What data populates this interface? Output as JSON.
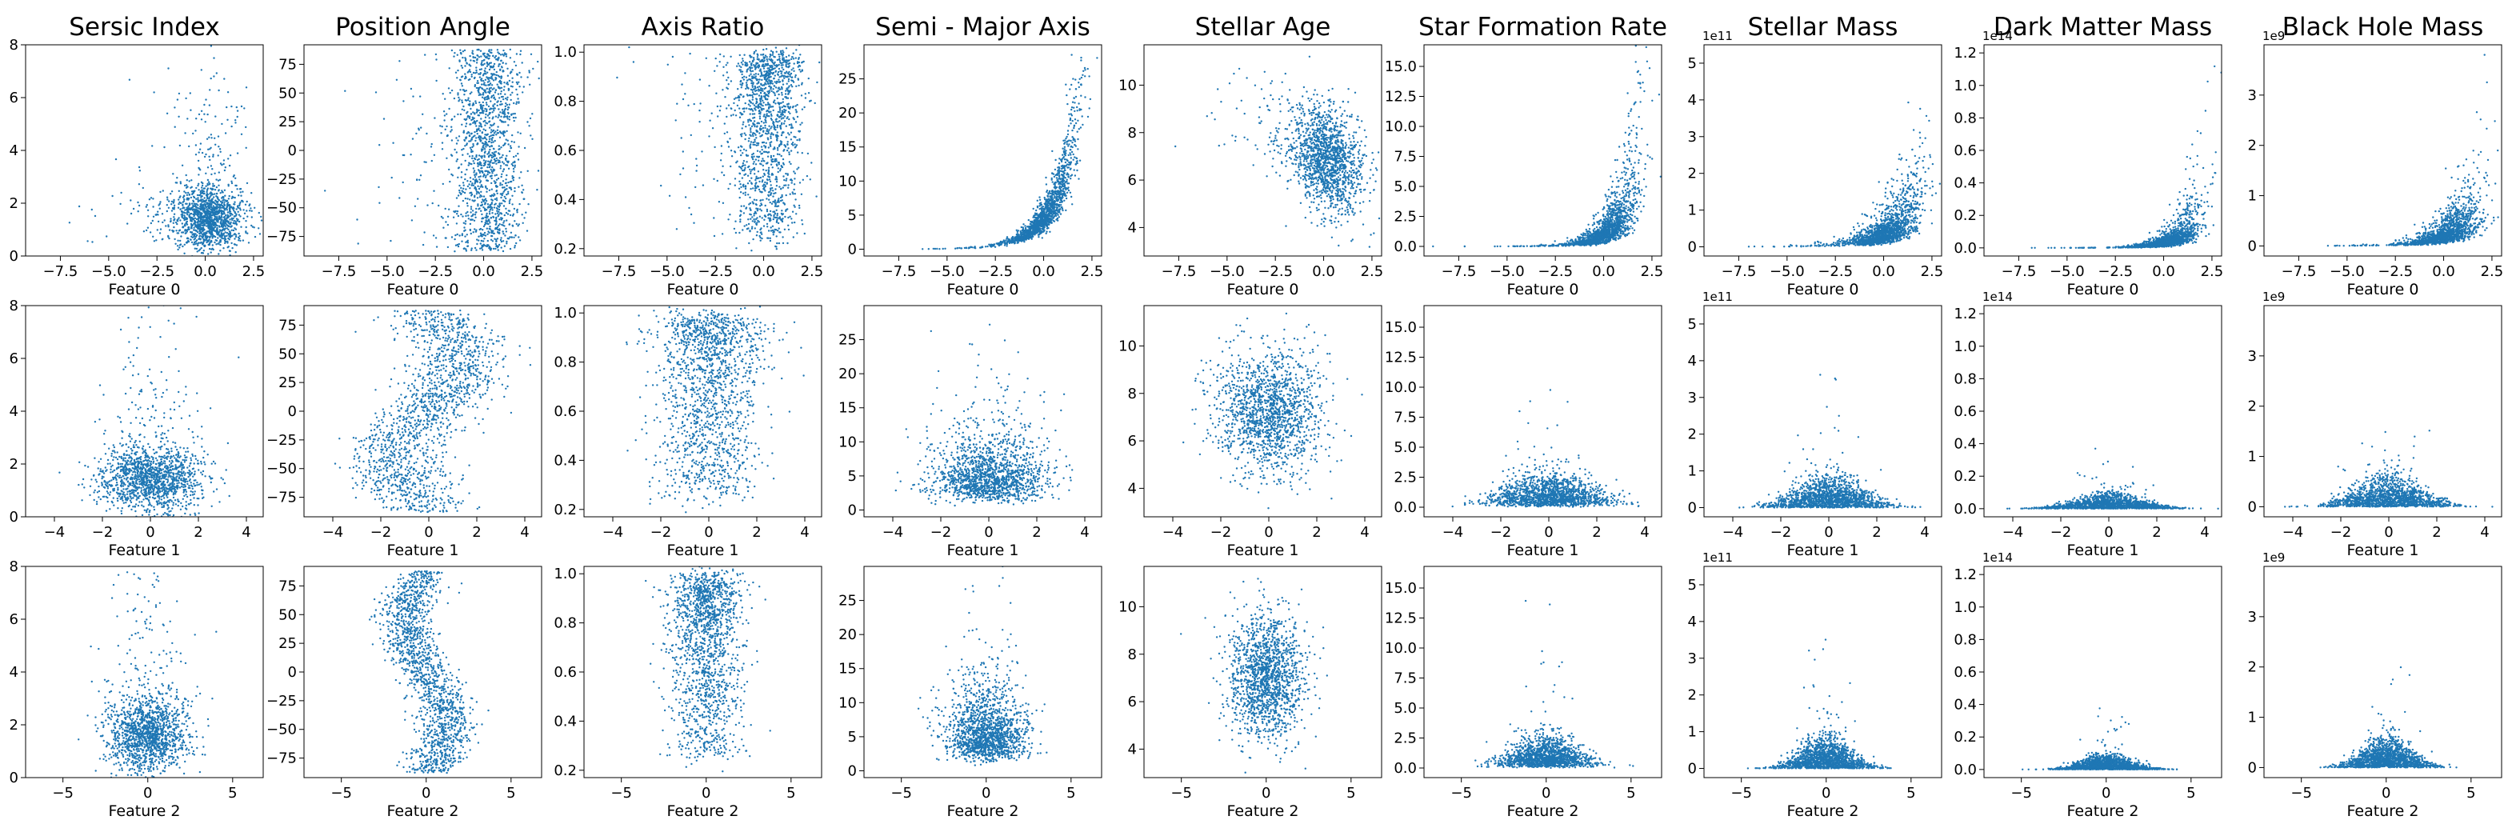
{
  "chart_data": [
    {
      "type": "scatter",
      "row": 0,
      "col": 0,
      "title": "Sersic Index",
      "xlabel": "Feature 0",
      "xlim": [
        -9.3,
        3.0
      ],
      "ylim": [
        0,
        8
      ],
      "xticks": [
        -7.5,
        -5.0,
        -2.5,
        0.0,
        2.5
      ],
      "yticks": [
        0,
        2,
        4,
        6,
        8
      ],
      "offset": "",
      "shape": "cloud",
      "params": {
        "cx": 0.2,
        "sx": 0.9,
        "cy": 1.4,
        "sy": 0.6,
        "tail": "up",
        "tailAmt": 1.6,
        "xsk": -2.4,
        "n": 1500
      },
      "color": "#1f77b4"
    },
    {
      "type": "scatter",
      "row": 0,
      "col": 1,
      "title": "Position Angle",
      "xlabel": "Feature 0",
      "xlim": [
        -9.3,
        3.0
      ],
      "ylim": [
        -92,
        92
      ],
      "xticks": [
        -7.5,
        -5.0,
        -2.5,
        0.0,
        2.5
      ],
      "yticks": [
        -75,
        -50,
        -25,
        0,
        25,
        50,
        75
      ],
      "offset": "",
      "shape": "uniform",
      "params": {
        "cx": 0.2,
        "sx": 0.9,
        "xsk": -2.4,
        "n": 1500
      },
      "color": "#1f77b4"
    },
    {
      "type": "scatter",
      "row": 0,
      "col": 2,
      "title": "Axis Ratio",
      "xlabel": "Feature 0",
      "xlim": [
        -9.3,
        3.0
      ],
      "ylim": [
        0.17,
        1.03
      ],
      "xticks": [
        -7.5,
        -5.0,
        -2.5,
        0.0,
        2.5
      ],
      "yticks": [
        0.2,
        0.4,
        0.6,
        0.8,
        1.0
      ],
      "offset": "",
      "shape": "axis",
      "params": {
        "cx": 0.2,
        "sx": 0.9,
        "xsk": -2.4,
        "n": 1500
      },
      "color": "#1f77b4"
    },
    {
      "type": "scatter",
      "row": 0,
      "col": 3,
      "title": "Semi - Major Axis",
      "xlabel": "Feature 0",
      "xlim": [
        -9.3,
        3.0
      ],
      "ylim": [
        -1,
        30
      ],
      "xticks": [
        -7.5,
        -5.0,
        -2.5,
        0.0,
        2.5
      ],
      "yticks": [
        0,
        5,
        10,
        15,
        20,
        25
      ],
      "offset": "",
      "shape": "exp",
      "params": {
        "cx": 0.2,
        "sx": 0.9,
        "xsk": -2.4,
        "n": 1500
      },
      "color": "#1f77b4"
    },
    {
      "type": "scatter",
      "row": 0,
      "col": 4,
      "title": "Stellar Age",
      "xlabel": "Feature 0",
      "xlim": [
        -9.3,
        3.0
      ],
      "ylim": [
        2.8,
        11.7
      ],
      "xticks": [
        -7.5,
        -5.0,
        -2.5,
        0.0,
        2.5
      ],
      "yticks": [
        4,
        6,
        8,
        10
      ],
      "offset": "",
      "shape": "age0",
      "params": {
        "cx": 0.2,
        "sx": 0.9,
        "xsk": -2.4,
        "n": 1500
      },
      "color": "#1f77b4"
    },
    {
      "type": "scatter",
      "row": 0,
      "col": 5,
      "title": "Star Formation Rate",
      "xlabel": "Feature 0",
      "xlim": [
        -9.3,
        3.0
      ],
      "ylim": [
        -0.8,
        16.8
      ],
      "xticks": [
        -7.5,
        -5.0,
        -2.5,
        0.0,
        2.5
      ],
      "yticks": [
        0.0,
        2.5,
        5.0,
        7.5,
        10.0,
        12.5,
        15.0
      ],
      "offset": "",
      "shape": "rise",
      "params": {
        "cx": 0.2,
        "sx": 0.9,
        "xsk": -2.4,
        "k": 1.0,
        "amp": 1.0,
        "n": 1500
      },
      "color": "#1f77b4"
    },
    {
      "type": "scatter",
      "row": 0,
      "col": 6,
      "title": "Stellar Mass",
      "xlabel": "Feature 0",
      "xlim": [
        -9.3,
        3.0
      ],
      "ylim": [
        -0.25,
        5.5
      ],
      "xticks": [
        -7.5,
        -5.0,
        -2.5,
        0.0,
        2.5
      ],
      "yticks": [
        0,
        1,
        2,
        3,
        4,
        5
      ],
      "offset": "1e11",
      "shape": "rise",
      "params": {
        "cx": 0.2,
        "sx": 0.9,
        "xsk": -2.4,
        "k": 0.7,
        "amp": 0.35,
        "n": 1500
      },
      "color": "#1f77b4"
    },
    {
      "type": "scatter",
      "row": 0,
      "col": 7,
      "title": "Dark Matter Mass",
      "xlabel": "Feature 0",
      "xlim": [
        -9.3,
        3.0
      ],
      "ylim": [
        -0.05,
        1.25
      ],
      "xticks": [
        -7.5,
        -5.0,
        -2.5,
        0.0,
        2.5
      ],
      "yticks": [
        0.0,
        0.2,
        0.4,
        0.6,
        0.8,
        1.0,
        1.2
      ],
      "offset": "1e14",
      "shape": "rise",
      "params": {
        "cx": 0.2,
        "sx": 0.9,
        "xsk": -2.4,
        "k": 1.0,
        "amp": 0.03,
        "n": 1500
      },
      "color": "#1f77b4"
    },
    {
      "type": "scatter",
      "row": 0,
      "col": 8,
      "title": "Black Hole Mass",
      "xlabel": "Feature 0",
      "xlim": [
        -9.3,
        3.0
      ],
      "ylim": [
        -0.2,
        4.0
      ],
      "xticks": [
        -7.5,
        -5.0,
        -2.5,
        0.0,
        2.5
      ],
      "yticks": [
        0,
        1,
        2,
        3
      ],
      "offset": "1e9",
      "shape": "rise",
      "params": {
        "cx": 0.2,
        "sx": 0.9,
        "xsk": -2.4,
        "k": 0.7,
        "amp": 0.2,
        "n": 1500
      },
      "color": "#1f77b4"
    },
    {
      "type": "scatter",
      "row": 1,
      "col": 0,
      "title": "",
      "xlabel": "Feature 1",
      "xlim": [
        -5.2,
        4.7
      ],
      "ylim": [
        0,
        8
      ],
      "xticks": [
        -4,
        -2,
        0,
        2,
        4
      ],
      "yticks": [
        0,
        2,
        4,
        6,
        8
      ],
      "offset": "",
      "shape": "cloud",
      "params": {
        "cx": 0,
        "sx": 1.1,
        "cy": 1.4,
        "sy": 0.6,
        "tail": "up",
        "tailAmt": 1.6,
        "n": 1500
      },
      "color": "#1f77b4"
    },
    {
      "type": "scatter",
      "row": 1,
      "col": 1,
      "title": "",
      "xlabel": "Feature 1",
      "xlim": [
        -5.2,
        4.7
      ],
      "ylim": [
        -92,
        92
      ],
      "xticks": [
        -4,
        -2,
        0,
        2,
        4
      ],
      "yticks": [
        -75,
        -50,
        -25,
        0,
        25,
        50,
        75
      ],
      "offset": "",
      "shape": "sband",
      "params": {
        "sx": 1.0,
        "amp": 1.2,
        "n": 1500
      },
      "color": "#1f77b4"
    },
    {
      "type": "scatter",
      "row": 1,
      "col": 2,
      "title": "",
      "xlabel": "Feature 1",
      "xlim": [
        -5.2,
        4.7
      ],
      "ylim": [
        0.17,
        1.03
      ],
      "xticks": [
        -4,
        -2,
        0,
        2,
        4
      ],
      "yticks": [
        0.2,
        0.4,
        0.6,
        0.8,
        1.0
      ],
      "offset": "",
      "shape": "axis",
      "params": {
        "cx": 0,
        "sx": 1.1,
        "n": 1500
      },
      "color": "#1f77b4"
    },
    {
      "type": "scatter",
      "row": 1,
      "col": 3,
      "title": "",
      "xlabel": "Feature 1",
      "xlim": [
        -5.2,
        4.7
      ],
      "ylim": [
        -1,
        30
      ],
      "xticks": [
        -4,
        -2,
        0,
        2,
        4
      ],
      "yticks": [
        0,
        5,
        10,
        15,
        20,
        25
      ],
      "offset": "",
      "shape": "lognorm",
      "params": {
        "cx": 0,
        "sx": 1.2,
        "med": 5,
        "lsig": 0.55,
        "n": 1500
      },
      "color": "#1f77b4"
    },
    {
      "type": "scatter",
      "row": 1,
      "col": 4,
      "title": "",
      "xlabel": "Feature 1",
      "xlim": [
        -5.2,
        4.7
      ],
      "ylim": [
        2.8,
        11.7
      ],
      "xticks": [
        -4,
        -2,
        0,
        2,
        4
      ],
      "yticks": [
        4,
        6,
        8,
        10
      ],
      "offset": "",
      "shape": "cloud",
      "params": {
        "cx": 0,
        "sx": 1.1,
        "cy": 7.2,
        "sy": 1.3,
        "n": 1500
      },
      "color": "#1f77b4"
    },
    {
      "type": "scatter",
      "row": 1,
      "col": 5,
      "title": "",
      "xlabel": "Feature 1",
      "xlim": [
        -5.2,
        4.7
      ],
      "ylim": [
        -0.8,
        16.8
      ],
      "xticks": [
        -4,
        -2,
        0,
        2,
        4
      ],
      "yticks": [
        0.0,
        2.5,
        5.0,
        7.5,
        10.0,
        12.5,
        15.0
      ],
      "offset": "",
      "shape": "skew",
      "params": {
        "cx": 0,
        "sx": 1.2,
        "scale": 1.2,
        "n": 1500
      },
      "color": "#1f77b4"
    },
    {
      "type": "scatter",
      "row": 1,
      "col": 6,
      "title": "",
      "xlabel": "Feature 1",
      "xlim": [
        -5.2,
        4.7
      ],
      "ylim": [
        -0.25,
        5.5
      ],
      "xticks": [
        -4,
        -2,
        0,
        2,
        4
      ],
      "yticks": [
        0,
        1,
        2,
        3,
        4,
        5
      ],
      "offset": "1e11",
      "shape": "spike",
      "params": {
        "sx": 1.2,
        "scale": 0.45,
        "n": 1500
      },
      "color": "#1f77b4"
    },
    {
      "type": "scatter",
      "row": 1,
      "col": 7,
      "title": "",
      "xlabel": "Feature 1",
      "xlim": [
        -5.2,
        4.7
      ],
      "ylim": [
        -0.05,
        1.25
      ],
      "xticks": [
        -4,
        -2,
        0,
        2,
        4
      ],
      "yticks": [
        0.0,
        0.2,
        0.4,
        0.6,
        0.8,
        1.0,
        1.2
      ],
      "offset": "1e14",
      "shape": "spike",
      "params": {
        "sx": 1.3,
        "scale": 0.045,
        "n": 1500
      },
      "color": "#1f77b4"
    },
    {
      "type": "scatter",
      "row": 1,
      "col": 8,
      "title": "",
      "xlabel": "Feature 1",
      "xlim": [
        -5.2,
        4.7
      ],
      "ylim": [
        -0.2,
        4.0
      ],
      "xticks": [
        -4,
        -2,
        0,
        2,
        4
      ],
      "yticks": [
        0,
        1,
        2,
        3
      ],
      "offset": "1e9",
      "shape": "spike",
      "params": {
        "sx": 1.2,
        "scale": 0.3,
        "n": 1500
      },
      "color": "#1f77b4"
    },
    {
      "type": "scatter",
      "row": 2,
      "col": 0,
      "title": "",
      "xlabel": "Feature 2",
      "xlim": [
        -7.2,
        6.8
      ],
      "ylim": [
        0,
        8
      ],
      "xticks": [
        -5,
        0,
        5
      ],
      "yticks": [
        0,
        2,
        4,
        6,
        8
      ],
      "offset": "",
      "shape": "cloud",
      "params": {
        "cx": 0,
        "sx": 1.2,
        "cy": 1.6,
        "sy": 0.7,
        "tail": "up",
        "tailAmt": 1.8,
        "n": 1500
      },
      "color": "#1f77b4"
    },
    {
      "type": "scatter",
      "row": 2,
      "col": 1,
      "title": "",
      "xlabel": "Feature 2",
      "xlim": [
        -7.2,
        6.8
      ],
      "ylim": [
        -92,
        92
      ],
      "xticks": [
        -5,
        0,
        5
      ],
      "yticks": [
        -75,
        -50,
        -25,
        0,
        25,
        50,
        75
      ],
      "offset": "",
      "shape": "sband",
      "params": {
        "sx": 0.8,
        "amp": -1.1,
        "n": 1500
      },
      "color": "#1f77b4"
    },
    {
      "type": "scatter",
      "row": 2,
      "col": 2,
      "title": "",
      "xlabel": "Feature 2",
      "xlim": [
        -7.2,
        6.8
      ],
      "ylim": [
        0.17,
        1.03
      ],
      "xticks": [
        -5,
        0,
        5
      ],
      "yticks": [
        0.2,
        0.4,
        0.6,
        0.8,
        1.0
      ],
      "offset": "",
      "shape": "axis",
      "params": {
        "cx": 0,
        "sx": 1.1,
        "n": 1500
      },
      "color": "#1f77b4"
    },
    {
      "type": "scatter",
      "row": 2,
      "col": 3,
      "title": "",
      "xlabel": "Feature 2",
      "xlim": [
        -7.2,
        6.8
      ],
      "ylim": [
        -1,
        30
      ],
      "xticks": [
        -5,
        0,
        5
      ],
      "yticks": [
        0,
        5,
        10,
        15,
        20,
        25
      ],
      "offset": "",
      "shape": "lognorm",
      "params": {
        "cx": 0,
        "sx": 1.2,
        "med": 5.5,
        "lsig": 0.55,
        "n": 1500
      },
      "color": "#1f77b4"
    },
    {
      "type": "scatter",
      "row": 2,
      "col": 4,
      "title": "",
      "xlabel": "Feature 2",
      "xlim": [
        -7.2,
        6.8
      ],
      "ylim": [
        2.8,
        11.7
      ],
      "xticks": [
        -5,
        0,
        5
      ],
      "yticks": [
        4,
        6,
        8,
        10
      ],
      "offset": "",
      "shape": "cloud",
      "params": {
        "cx": 0,
        "sx": 1.1,
        "cy": 7.0,
        "sy": 1.3,
        "n": 1500
      },
      "color": "#1f77b4"
    },
    {
      "type": "scatter",
      "row": 2,
      "col": 5,
      "title": "",
      "xlabel": "Feature 2",
      "xlim": [
        -7.2,
        6.8
      ],
      "ylim": [
        -0.8,
        16.8
      ],
      "xticks": [
        -5,
        0,
        5
      ],
      "yticks": [
        0.0,
        2.5,
        5.0,
        7.5,
        10.0,
        12.5,
        15.0
      ],
      "offset": "",
      "shape": "skew",
      "params": {
        "cx": 0,
        "sx": 1.3,
        "scale": 1.2,
        "n": 1500
      },
      "color": "#1f77b4"
    },
    {
      "type": "scatter",
      "row": 2,
      "col": 6,
      "title": "",
      "xlabel": "Feature 2",
      "xlim": [
        -7.2,
        6.8
      ],
      "ylim": [
        -0.25,
        5.5
      ],
      "xticks": [
        -5,
        0,
        5
      ],
      "yticks": [
        0,
        1,
        2,
        3,
        4,
        5
      ],
      "offset": "1e11",
      "shape": "spike",
      "params": {
        "sx": 1.3,
        "scale": 0.45,
        "n": 1500
      },
      "color": "#1f77b4"
    },
    {
      "type": "scatter",
      "row": 2,
      "col": 7,
      "title": "",
      "xlabel": "Feature 2",
      "xlim": [
        -7.2,
        6.8
      ],
      "ylim": [
        -0.05,
        1.25
      ],
      "xticks": [
        -5,
        0,
        5
      ],
      "yticks": [
        0.0,
        0.2,
        0.4,
        0.6,
        0.8,
        1.0,
        1.2
      ],
      "offset": "1e14",
      "shape": "spike",
      "params": {
        "sx": 1.4,
        "scale": 0.045,
        "n": 1500
      },
      "color": "#1f77b4"
    },
    {
      "type": "scatter",
      "row": 2,
      "col": 8,
      "title": "",
      "xlabel": "Feature 2",
      "xlim": [
        -7.2,
        6.8
      ],
      "ylim": [
        -0.2,
        4.0
      ],
      "xticks": [
        -5,
        0,
        5
      ],
      "yticks": [
        0,
        1,
        2,
        3
      ],
      "offset": "1e9",
      "shape": "spike",
      "params": {
        "sx": 1.3,
        "scale": 0.3,
        "n": 1500
      },
      "color": "#1f77b4"
    }
  ]
}
